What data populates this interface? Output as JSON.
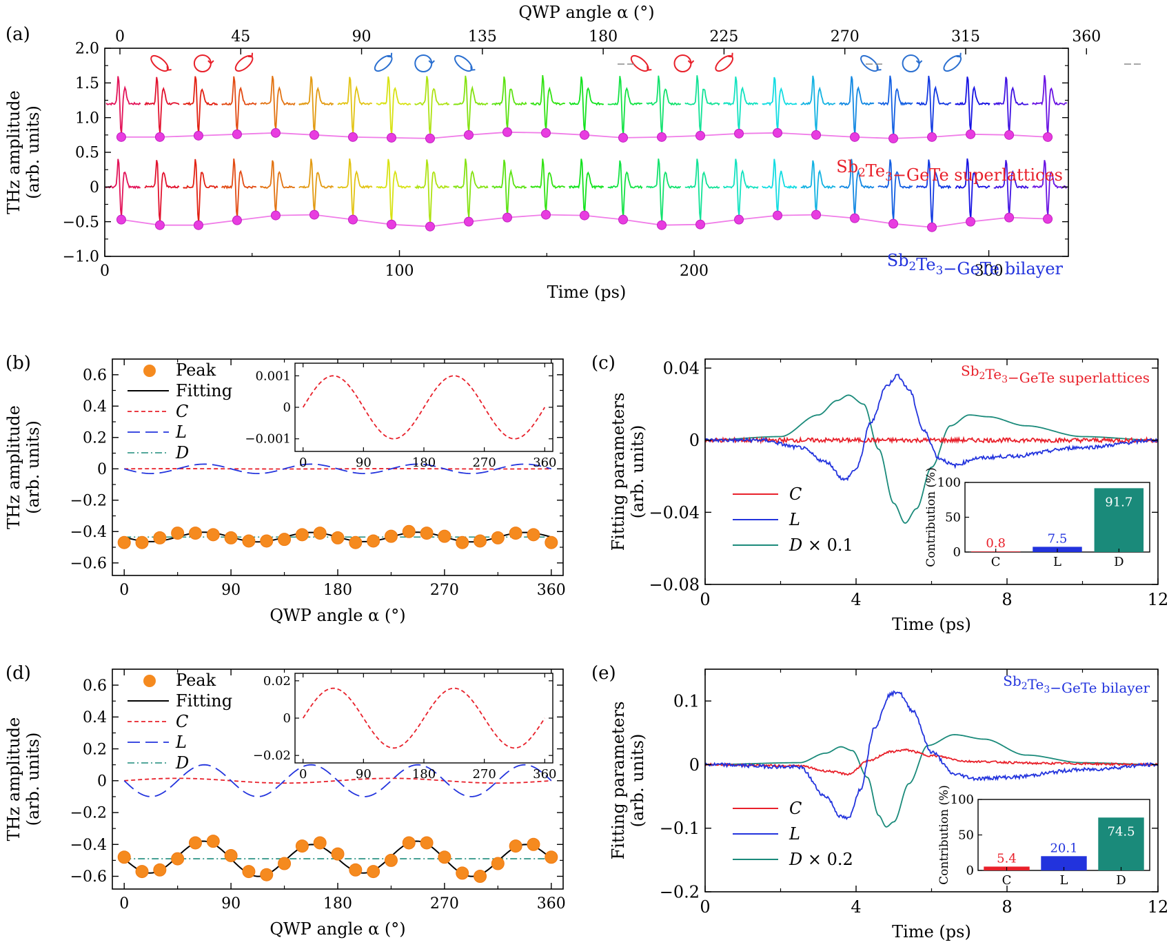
{
  "figure": {
    "panel_labels": [
      "(a)",
      "(b)",
      "(c)",
      "(d)",
      "(e)"
    ]
  },
  "chart_data": [
    {
      "panel": "(a)",
      "type": "line",
      "xlabel": "Time (ps)",
      "xlabel_top": "QWP angle α (°)",
      "ylabel": "THz amplitude (arb. units)",
      "xlim": [
        0,
        327
      ],
      "ylim": [
        -1.0,
        2.0
      ],
      "xticks": [
        0,
        100,
        200,
        300
      ],
      "yticks": [
        -1.0,
        -0.5,
        0,
        0.5,
        1.0,
        1.5,
        2.0
      ],
      "top_xticks": [
        0,
        45,
        90,
        135,
        180,
        225,
        270,
        315,
        360
      ],
      "top_xticks_at_time": [
        0,
        41,
        82,
        123,
        164,
        205,
        246,
        287,
        328
      ],
      "series_labels": [
        "Sb₂Te₃−GeTe superlattices",
        "Sb₂Te₃−GeTe bilayer"
      ],
      "series_label_colors": [
        "#e8202a",
        "#2233dd"
      ],
      "segments_per_trace": 25,
      "segment_duration_ps": 13.1,
      "peak_offset_ps": 5.2,
      "series": [
        {
          "name": "Sb₂Te₃−GeTe superlattices",
          "baseline": 1.2,
          "peak_values": [
            0.72,
            0.72,
            0.74,
            0.76,
            0.78,
            0.75,
            0.72,
            0.71,
            0.7,
            0.75,
            0.79,
            0.78,
            0.75,
            0.71,
            0.72,
            0.74,
            0.77,
            0.78,
            0.75,
            0.72,
            0.7,
            0.72,
            0.76,
            0.75,
            0.72
          ]
        },
        {
          "name": "Sb₂Te₃−GeTe bilayer",
          "baseline": 0.0,
          "peak_values": [
            -0.47,
            -0.55,
            -0.55,
            -0.48,
            -0.41,
            -0.4,
            -0.47,
            -0.54,
            -0.57,
            -0.5,
            -0.44,
            -0.4,
            -0.41,
            -0.47,
            -0.55,
            -0.54,
            -0.47,
            -0.41,
            -0.4,
            -0.45,
            -0.53,
            -0.58,
            -0.5,
            -0.44,
            -0.46
          ]
        }
      ]
    },
    {
      "panel": "(b)",
      "type": "scatter",
      "xlabel": "QWP angle α (°)",
      "ylabel": "THz amplitude (arb. units)",
      "xlim": [
        -10,
        370
      ],
      "ylim": [
        -0.68,
        0.7
      ],
      "xticks": [
        0,
        90,
        180,
        270,
        360
      ],
      "yticks": [
        -0.6,
        -0.4,
        -0.2,
        0,
        0.2,
        0.4,
        0.6
      ],
      "legend": [
        "Peak",
        "Fitting",
        "C",
        "L",
        "D"
      ],
      "legend_position": "top-left",
      "x": [
        0,
        15,
        30,
        45,
        60,
        75,
        90,
        105,
        120,
        135,
        150,
        165,
        180,
        195,
        210,
        225,
        240,
        255,
        270,
        285,
        300,
        315,
        330,
        345,
        360
      ],
      "peak": [
        -0.47,
        -0.47,
        -0.44,
        -0.41,
        -0.41,
        -0.42,
        -0.44,
        -0.46,
        -0.46,
        -0.45,
        -0.42,
        -0.41,
        -0.44,
        -0.47,
        -0.46,
        -0.43,
        -0.4,
        -0.41,
        -0.43,
        -0.47,
        -0.46,
        -0.44,
        -0.41,
        -0.42,
        -0.47
      ],
      "fit_model": {
        "D": -0.435,
        "C_amp": 0.001,
        "L_amp": 0.03
      },
      "inset": {
        "xticks": [
          0,
          90,
          180,
          270,
          360
        ],
        "yticks": [
          "0.001",
          "0",
          "−0.001"
        ],
        "ylim": [
          -0.0014,
          0.0014
        ],
        "curve_amp": 0.001
      }
    },
    {
      "panel": "(c)",
      "type": "line",
      "xlabel": "Time (ps)",
      "ylabel": "Fitting parameters (arb. units)",
      "xlim": [
        0,
        12
      ],
      "ylim": [
        -0.08,
        0.045
      ],
      "xticks": [
        0,
        4,
        8,
        12
      ],
      "yticks": [
        "0.04",
        "0",
        "−0.04",
        "−0.08"
      ],
      "title": "Sb₂Te₃−GeTe superlattices",
      "title_color": "#e8202a",
      "legend": [
        "C",
        "L",
        "D × 0.1"
      ],
      "series_colors": [
        "#e8202a",
        "#2233dd",
        "#1a8a7a"
      ],
      "traces": {
        "D": {
          "pts": [
            [
              0,
              0
            ],
            [
              2,
              0.002
            ],
            [
              3,
              0.014
            ],
            [
              3.5,
              0.022
            ],
            [
              3.8,
              0.025
            ],
            [
              4.2,
              0.02
            ],
            [
              4.6,
              -0.005
            ],
            [
              5.0,
              -0.035
            ],
            [
              5.3,
              -0.046
            ],
            [
              5.6,
              -0.038
            ],
            [
              6.0,
              -0.015
            ],
            [
              6.5,
              0.008
            ],
            [
              7.0,
              0.014
            ],
            [
              7.5,
              0.013
            ],
            [
              8.5,
              0.008
            ],
            [
              10,
              0.002
            ],
            [
              12,
              0
            ]
          ]
        },
        "L": {
          "pts": [
            [
              0,
              0
            ],
            [
              1.5,
              0
            ],
            [
              2.5,
              -0.004
            ],
            [
              3.2,
              -0.012
            ],
            [
              3.7,
              -0.022
            ],
            [
              4.0,
              -0.016
            ],
            [
              4.4,
              0.01
            ],
            [
              4.8,
              0.03
            ],
            [
              5.1,
              0.036
            ],
            [
              5.4,
              0.028
            ],
            [
              5.8,
              0.005
            ],
            [
              6.2,
              -0.01
            ],
            [
              6.6,
              -0.014
            ],
            [
              7.2,
              -0.01
            ],
            [
              8,
              -0.009
            ],
            [
              10,
              -0.004
            ],
            [
              12,
              0
            ]
          ]
        },
        "C": {
          "pts": [
            [
              0,
              0
            ],
            [
              12,
              0
            ]
          ],
          "noise": 0.0015
        }
      },
      "inset": {
        "type": "bar",
        "ylabel": "Contribution (%)",
        "categories": [
          "C",
          "L",
          "D"
        ],
        "values": [
          0.8,
          7.5,
          91.7
        ],
        "value_labels": [
          "0.8",
          "7.5",
          "91.7"
        ],
        "colors": [
          "#e8202a",
          "#2233dd",
          "#1a8a7a"
        ],
        "ylim": [
          0,
          100
        ],
        "yticks": [
          0,
          50,
          100
        ]
      }
    },
    {
      "panel": "(d)",
      "type": "scatter",
      "xlabel": "QWP angle α (°)",
      "ylabel": "THz amplitude (arb. units)",
      "xlim": [
        -10,
        370
      ],
      "ylim": [
        -0.68,
        0.7
      ],
      "xticks": [
        0,
        90,
        180,
        270,
        360
      ],
      "yticks": [
        -0.6,
        -0.4,
        -0.2,
        0,
        0.2,
        0.4,
        0.6
      ],
      "legend": [
        "Peak",
        "Fitting",
        "C",
        "L",
        "D"
      ],
      "legend_position": "top-left",
      "x": [
        0,
        15,
        30,
        45,
        60,
        75,
        90,
        105,
        120,
        135,
        150,
        165,
        180,
        195,
        210,
        225,
        240,
        255,
        270,
        285,
        300,
        315,
        330,
        345,
        360
      ],
      "peak": [
        -0.48,
        -0.57,
        -0.56,
        -0.49,
        -0.39,
        -0.38,
        -0.47,
        -0.57,
        -0.59,
        -0.52,
        -0.41,
        -0.39,
        -0.46,
        -0.56,
        -0.57,
        -0.5,
        -0.39,
        -0.39,
        -0.48,
        -0.58,
        -0.6,
        -0.52,
        -0.41,
        -0.4,
        -0.48
      ],
      "fit_model": {
        "D": -0.49,
        "C_amp": 0.015,
        "L_amp": 0.1
      },
      "inset": {
        "xticks": [
          0,
          90,
          180,
          270,
          360
        ],
        "yticks": [
          "0.02",
          "0",
          "−0.02"
        ],
        "ylim": [
          -0.024,
          0.024
        ],
        "curve_amp": 0.016
      }
    },
    {
      "panel": "(e)",
      "type": "line",
      "xlabel": "Time (ps)",
      "ylabel": "Fitting parameters (arb. units)",
      "xlim": [
        0,
        12
      ],
      "ylim": [
        -0.2,
        0.15
      ],
      "xticks": [
        0,
        4,
        8,
        12
      ],
      "yticks": [
        "0.1",
        "0",
        "−0.1",
        "−0.2"
      ],
      "title": "Sb₂Te₃−GeTe bilayer",
      "title_color": "#2233dd",
      "legend": [
        "C",
        "L",
        "D × 0.2"
      ],
      "series_colors": [
        "#e8202a",
        "#2233dd",
        "#1a8a7a"
      ],
      "traces": {
        "D": {
          "pts": [
            [
              0,
              0
            ],
            [
              2.5,
              0.003
            ],
            [
              3.2,
              0.018
            ],
            [
              3.6,
              0.028
            ],
            [
              3.9,
              0.022
            ],
            [
              4.3,
              -0.02
            ],
            [
              4.6,
              -0.08
            ],
            [
              4.8,
              -0.098
            ],
            [
              5.0,
              -0.09
            ],
            [
              5.4,
              -0.03
            ],
            [
              5.9,
              0.03
            ],
            [
              6.6,
              0.047
            ],
            [
              7.4,
              0.04
            ],
            [
              8.5,
              0.015
            ],
            [
              10,
              0.003
            ],
            [
              12,
              0
            ]
          ]
        },
        "L": {
          "pts": [
            [
              0,
              0
            ],
            [
              2.5,
              -0.004
            ],
            [
              3.2,
              -0.05
            ],
            [
              3.6,
              -0.082
            ],
            [
              3.8,
              -0.085
            ],
            [
              4.1,
              -0.04
            ],
            [
              4.5,
              0.06
            ],
            [
              4.9,
              0.11
            ],
            [
              5.1,
              0.115
            ],
            [
              5.5,
              0.085
            ],
            [
              6.0,
              0.02
            ],
            [
              6.6,
              -0.015
            ],
            [
              7.2,
              -0.022
            ],
            [
              8.0,
              -0.02
            ],
            [
              10,
              -0.008
            ],
            [
              12,
              0
            ]
          ]
        },
        "C": {
          "pts": [
            [
              0,
              0
            ],
            [
              2.5,
              -0.002
            ],
            [
              3.2,
              -0.01
            ],
            [
              3.8,
              -0.015
            ],
            [
              4.3,
              0.005
            ],
            [
              4.9,
              0.02
            ],
            [
              5.3,
              0.023
            ],
            [
              6.0,
              0.014
            ],
            [
              7.0,
              0.005
            ],
            [
              9,
              0.002
            ],
            [
              12,
              0
            ]
          ],
          "noise": 0.002
        }
      },
      "inset": {
        "type": "bar",
        "ylabel": "Contribution (%)",
        "categories": [
          "C",
          "L",
          "D"
        ],
        "values": [
          5.4,
          20.1,
          74.5
        ],
        "value_labels": [
          "5.4",
          "20.1",
          "74.5"
        ],
        "colors": [
          "#e8202a",
          "#2233dd",
          "#1a8a7a"
        ],
        "ylim": [
          0,
          100
        ],
        "yticks": [
          0,
          50,
          100
        ]
      }
    }
  ]
}
